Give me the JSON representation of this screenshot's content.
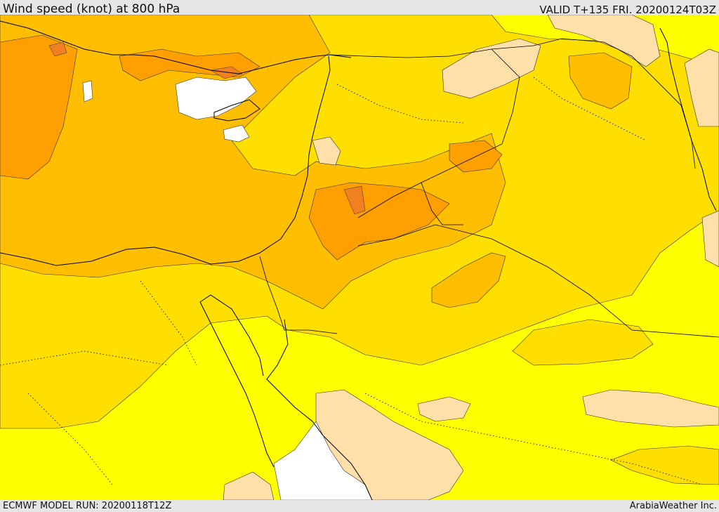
{
  "header": {
    "title": "Wind speed (knot) at 800 hPa",
    "valid": "VALID T+135 FRI. 20200124T03Z"
  },
  "footer": {
    "model_run": "ECMWF MODEL RUN: 20200118T12Z",
    "credit": "ArabiaWeather Inc."
  },
  "map": {
    "variable": "wind speed",
    "units": "knot",
    "level": "800 hPa",
    "colors": {
      "lowest": "#ffffff",
      "low": "#ffe0a8",
      "medium_low": "#ffff00",
      "medium": "#ffdf00",
      "medium_high": "#ffbf00",
      "high": "#ff9f00",
      "highest": "#f08020",
      "coastline": "#000000"
    }
  }
}
